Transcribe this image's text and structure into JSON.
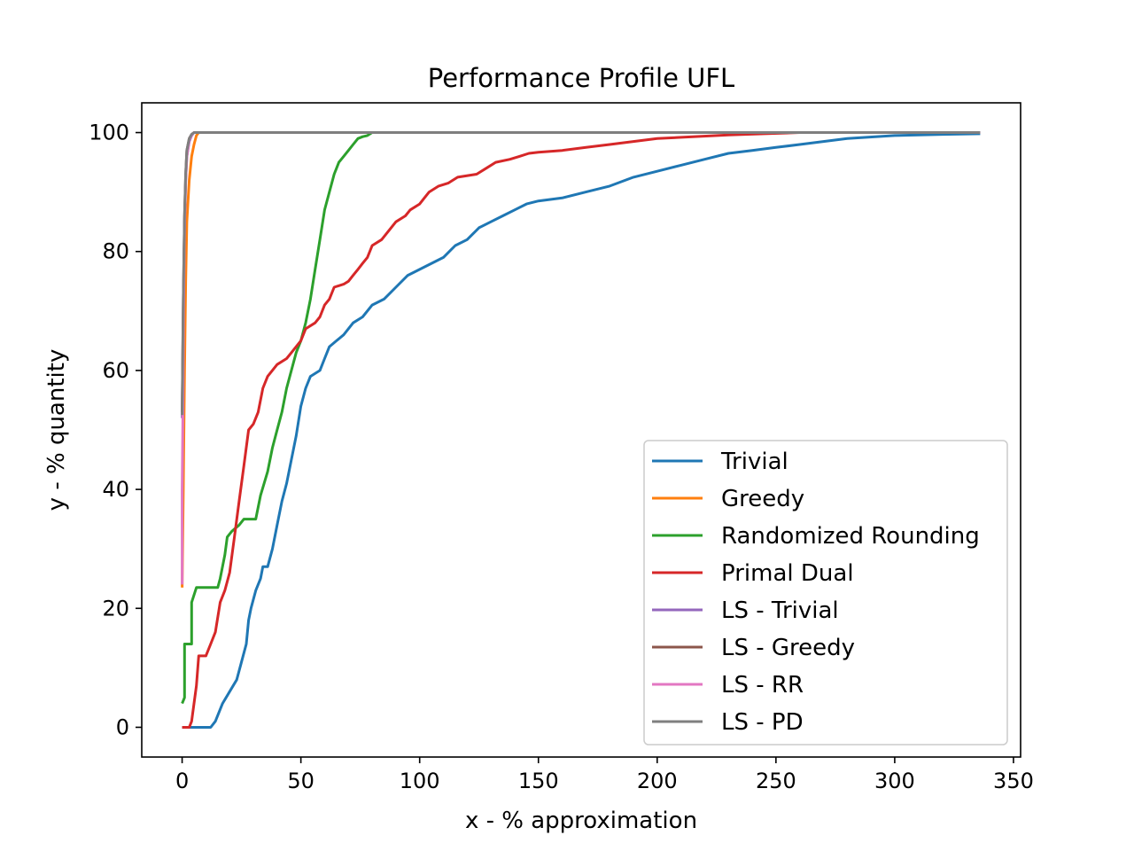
{
  "chart_data": {
    "type": "line",
    "title": "Performance Profile UFL",
    "xlabel": "x - % approximation",
    "ylabel": "y - % quantity",
    "xlim": [
      -17,
      353
    ],
    "ylim": [
      -5,
      105
    ],
    "xticks": [
      0,
      50,
      100,
      150,
      200,
      250,
      300,
      350
    ],
    "yticks": [
      0,
      20,
      40,
      60,
      80,
      100
    ],
    "grid": false,
    "legend_position": "lower-right",
    "series": [
      {
        "name": "Trivial",
        "color": "#1f77b4",
        "points": [
          [
            0,
            0
          ],
          [
            12,
            0
          ],
          [
            14,
            1
          ],
          [
            17,
            4
          ],
          [
            20,
            6
          ],
          [
            23,
            8
          ],
          [
            25,
            11
          ],
          [
            27,
            14
          ],
          [
            28,
            18
          ],
          [
            29,
            20
          ],
          [
            31,
            23
          ],
          [
            33,
            25
          ],
          [
            34,
            27
          ],
          [
            36,
            27
          ],
          [
            38,
            30
          ],
          [
            40,
            34
          ],
          [
            42,
            38
          ],
          [
            44,
            41
          ],
          [
            46,
            45
          ],
          [
            48,
            49
          ],
          [
            50,
            54
          ],
          [
            52,
            57
          ],
          [
            54,
            59
          ],
          [
            58,
            60
          ],
          [
            60,
            62
          ],
          [
            62,
            64
          ],
          [
            65,
            65
          ],
          [
            68,
            66
          ],
          [
            72,
            68
          ],
          [
            76,
            69
          ],
          [
            80,
            71
          ],
          [
            85,
            72
          ],
          [
            90,
            74
          ],
          [
            95,
            76
          ],
          [
            100,
            77
          ],
          [
            105,
            78
          ],
          [
            110,
            79
          ],
          [
            115,
            81
          ],
          [
            120,
            82
          ],
          [
            125,
            84
          ],
          [
            130,
            85
          ],
          [
            135,
            86
          ],
          [
            140,
            87
          ],
          [
            145,
            88
          ],
          [
            150,
            88.5
          ],
          [
            160,
            89
          ],
          [
            170,
            90
          ],
          [
            180,
            91
          ],
          [
            190,
            92.5
          ],
          [
            200,
            93.5
          ],
          [
            210,
            94.5
          ],
          [
            220,
            95.5
          ],
          [
            230,
            96.5
          ],
          [
            240,
            97
          ],
          [
            250,
            97.5
          ],
          [
            260,
            98
          ],
          [
            270,
            98.5
          ],
          [
            280,
            99
          ],
          [
            300,
            99.5
          ],
          [
            320,
            99.7
          ],
          [
            336,
            99.8
          ]
        ]
      },
      {
        "name": "Greedy",
        "color": "#ff7f0e",
        "points": [
          [
            0,
            23.5
          ],
          [
            0.5,
            40
          ],
          [
            1,
            60
          ],
          [
            1.5,
            75
          ],
          [
            2,
            85
          ],
          [
            3,
            92
          ],
          [
            4,
            96
          ],
          [
            5,
            98
          ],
          [
            6,
            99.5
          ],
          [
            7,
            100
          ],
          [
            336,
            100
          ]
        ]
      },
      {
        "name": "Randomized Rounding",
        "color": "#2ca02c",
        "points": [
          [
            0,
            4
          ],
          [
            1,
            5
          ],
          [
            1,
            14
          ],
          [
            4,
            14
          ],
          [
            4,
            21
          ],
          [
            6,
            23.5
          ],
          [
            15,
            23.5
          ],
          [
            16,
            25
          ],
          [
            18,
            29
          ],
          [
            19,
            32
          ],
          [
            21,
            33
          ],
          [
            24,
            34
          ],
          [
            26,
            35
          ],
          [
            31,
            35
          ],
          [
            33,
            39
          ],
          [
            36,
            43
          ],
          [
            38,
            47
          ],
          [
            40,
            50
          ],
          [
            42,
            53
          ],
          [
            44,
            57
          ],
          [
            46,
            60
          ],
          [
            48,
            63
          ],
          [
            50,
            65
          ],
          [
            52,
            68
          ],
          [
            54,
            72
          ],
          [
            56,
            77
          ],
          [
            58,
            82
          ],
          [
            60,
            87
          ],
          [
            62,
            90
          ],
          [
            64,
            93
          ],
          [
            66,
            95
          ],
          [
            68,
            96
          ],
          [
            70,
            97
          ],
          [
            72,
            98
          ],
          [
            74,
            99
          ],
          [
            76,
            99.3
          ],
          [
            78,
            99.5
          ],
          [
            80,
            100
          ],
          [
            336,
            100
          ]
        ]
      },
      {
        "name": "Primal Dual",
        "color": "#d62728",
        "points": [
          [
            0,
            0
          ],
          [
            3,
            0
          ],
          [
            4,
            1
          ],
          [
            6,
            7
          ],
          [
            7,
            12
          ],
          [
            10,
            12
          ],
          [
            12,
            14
          ],
          [
            14,
            16
          ],
          [
            16,
            21
          ],
          [
            18,
            23
          ],
          [
            20,
            26
          ],
          [
            22,
            32
          ],
          [
            24,
            38
          ],
          [
            26,
            44
          ],
          [
            28,
            50
          ],
          [
            30,
            51
          ],
          [
            32,
            53
          ],
          [
            34,
            57
          ],
          [
            36,
            59
          ],
          [
            40,
            61
          ],
          [
            44,
            62
          ],
          [
            46,
            63
          ],
          [
            48,
            64
          ],
          [
            50,
            65
          ],
          [
            52,
            67
          ],
          [
            56,
            68
          ],
          [
            58,
            69
          ],
          [
            60,
            71
          ],
          [
            62,
            72
          ],
          [
            64,
            74
          ],
          [
            68,
            74.5
          ],
          [
            70,
            75
          ],
          [
            72,
            76
          ],
          [
            74,
            77
          ],
          [
            76,
            78
          ],
          [
            78,
            79
          ],
          [
            80,
            81
          ],
          [
            84,
            82
          ],
          [
            86,
            83
          ],
          [
            88,
            84
          ],
          [
            90,
            85
          ],
          [
            94,
            86
          ],
          [
            96,
            87
          ],
          [
            100,
            88
          ],
          [
            102,
            89
          ],
          [
            104,
            90
          ],
          [
            108,
            91
          ],
          [
            112,
            91.5
          ],
          [
            116,
            92.5
          ],
          [
            124,
            93
          ],
          [
            128,
            94
          ],
          [
            132,
            95
          ],
          [
            138,
            95.5
          ],
          [
            142,
            96
          ],
          [
            146,
            96.5
          ],
          [
            150,
            96.7
          ],
          [
            160,
            97
          ],
          [
            170,
            97.5
          ],
          [
            180,
            98
          ],
          [
            190,
            98.5
          ],
          [
            200,
            99
          ],
          [
            215,
            99.3
          ],
          [
            230,
            99.6
          ],
          [
            245,
            99.8
          ],
          [
            260,
            100
          ],
          [
            336,
            100
          ]
        ]
      },
      {
        "name": "LS - Trivial",
        "color": "#9467bd",
        "points": [
          [
            0,
            52
          ],
          [
            0.5,
            70
          ],
          [
            1,
            85
          ],
          [
            1.5,
            92
          ],
          [
            2,
            96
          ],
          [
            3,
            98.5
          ],
          [
            4,
            99.5
          ],
          [
            5,
            100
          ],
          [
            336,
            100
          ]
        ]
      },
      {
        "name": "LS - Greedy",
        "color": "#8c564b",
        "points": [
          [
            0,
            53
          ],
          [
            0.5,
            72
          ],
          [
            1,
            86
          ],
          [
            1.5,
            93
          ],
          [
            2,
            97
          ],
          [
            3,
            99
          ],
          [
            4,
            99.7
          ],
          [
            5,
            100
          ],
          [
            336,
            100
          ]
        ]
      },
      {
        "name": "LS - RR",
        "color": "#e377c2",
        "points": [
          [
            0,
            24
          ],
          [
            0,
            40
          ],
          [
            0.3,
            52
          ],
          [
            0.6,
            70
          ],
          [
            1,
            84
          ],
          [
            1.5,
            92
          ],
          [
            2,
            96
          ],
          [
            3,
            98.7
          ],
          [
            4,
            99.6
          ],
          [
            5,
            100
          ],
          [
            336,
            100
          ]
        ]
      },
      {
        "name": "LS - PD",
        "color": "#7f7f7f",
        "points": [
          [
            0,
            52.5
          ],
          [
            0.5,
            72
          ],
          [
            1,
            86
          ],
          [
            1.5,
            93
          ],
          [
            2,
            97
          ],
          [
            3,
            99
          ],
          [
            4,
            99.7
          ],
          [
            5,
            100
          ],
          [
            336,
            100
          ]
        ]
      }
    ]
  }
}
